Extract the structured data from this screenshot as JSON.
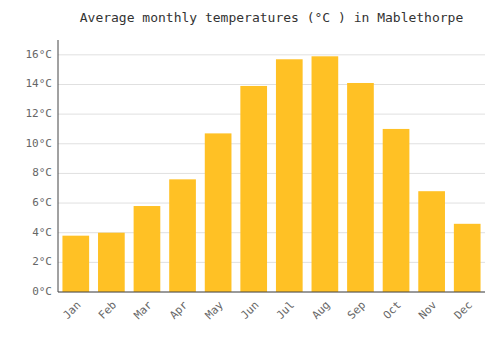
{
  "chart_data": {
    "type": "bar",
    "title": "Average monthly temperatures (°C ) in Mablethorpe",
    "categories": [
      "Jan",
      "Feb",
      "Mar",
      "Apr",
      "May",
      "Jun",
      "Jul",
      "Aug",
      "Sep",
      "Oct",
      "Nov",
      "Dec"
    ],
    "values": [
      3.8,
      4.0,
      5.8,
      7.6,
      10.7,
      13.9,
      15.7,
      15.9,
      14.1,
      11.0,
      6.8,
      4.6
    ],
    "color": "#FFC125",
    "ylim": [
      0,
      17
    ],
    "yticks": [
      {
        "value": 0,
        "label": "0°C"
      },
      {
        "value": 2,
        "label": "2°C"
      },
      {
        "value": 4,
        "label": "4°C"
      },
      {
        "value": 6,
        "label": "6°C"
      },
      {
        "value": 8,
        "label": "8°C"
      },
      {
        "value": 10,
        "label": "10°C"
      },
      {
        "value": 12,
        "label": "12°C"
      },
      {
        "value": 14,
        "label": "14°C"
      },
      {
        "value": 16,
        "label": "16°C"
      }
    ],
    "grid": true
  }
}
